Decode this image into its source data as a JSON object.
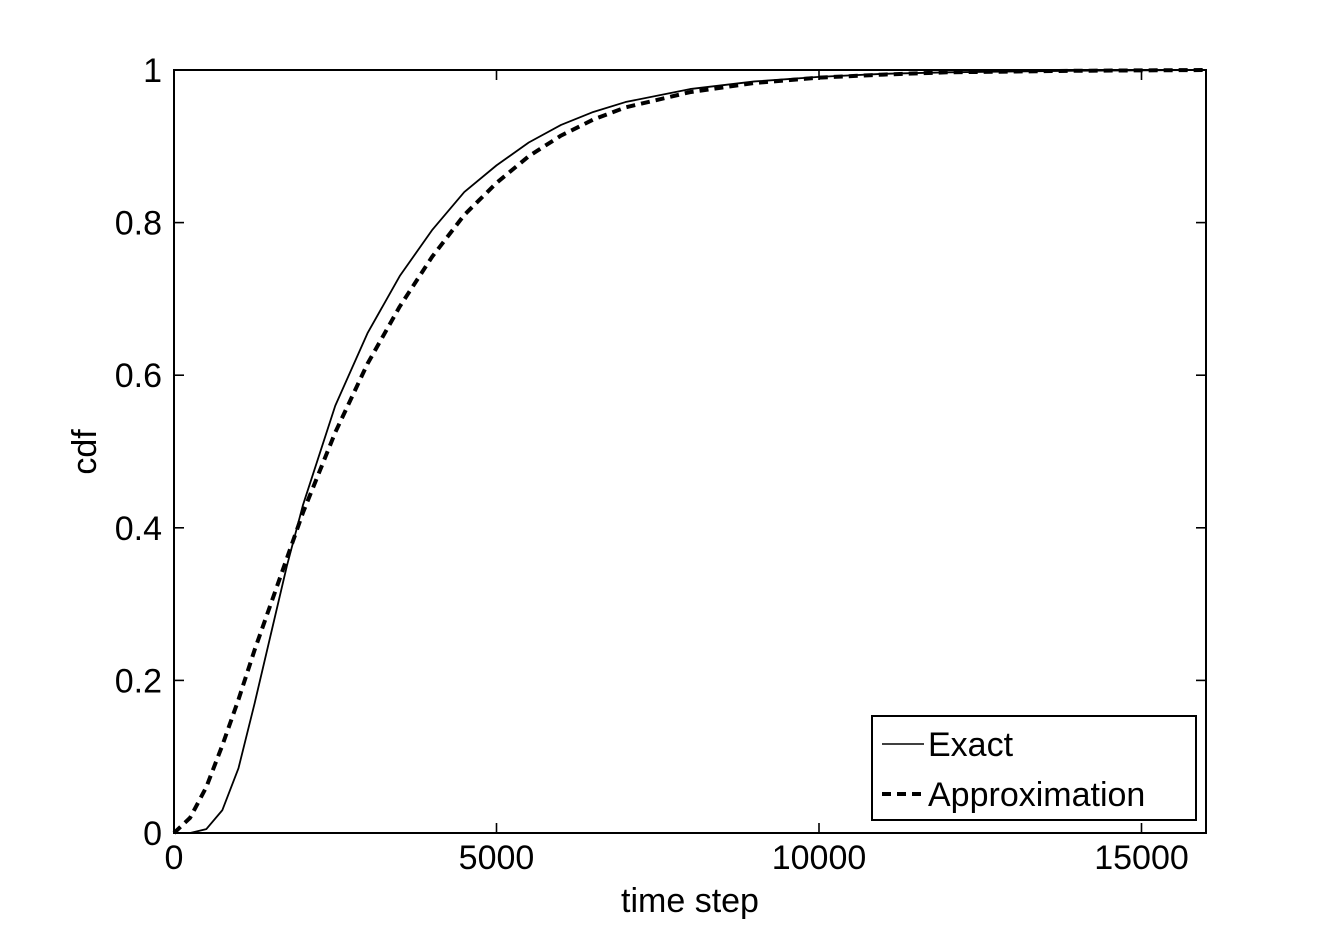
{
  "chart_data": {
    "type": "line",
    "title": "",
    "xlabel": "time step",
    "ylabel": "cdf",
    "xlim": [
      0,
      16000
    ],
    "ylim": [
      0,
      1
    ],
    "xticks": [
      0,
      5000,
      10000,
      15000
    ],
    "xtick_labels": [
      "0",
      "5000",
      "10000",
      "15000"
    ],
    "yticks": [
      0,
      0.2,
      0.4,
      0.6,
      0.8,
      1
    ],
    "ytick_labels": [
      "0",
      "0.2",
      "0.4",
      "0.6",
      "0.8",
      "1"
    ],
    "grid": false,
    "legend_position": "bottom-right",
    "series": [
      {
        "name": "Exact",
        "style": "solid",
        "color": "#000000",
        "x": [
          0,
          250,
          500,
          750,
          1000,
          1250,
          1500,
          1750,
          2000,
          2500,
          3000,
          3500,
          4000,
          4500,
          5000,
          5500,
          6000,
          6500,
          7000,
          8000,
          9000,
          10000,
          11000,
          12000,
          13000,
          14000,
          15000,
          16000
        ],
        "y": [
          0,
          0.0,
          0.005,
          0.03,
          0.085,
          0.17,
          0.26,
          0.35,
          0.43,
          0.56,
          0.655,
          0.73,
          0.79,
          0.84,
          0.875,
          0.905,
          0.928,
          0.945,
          0.958,
          0.975,
          0.985,
          0.991,
          0.995,
          0.997,
          0.998,
          0.999,
          0.9995,
          1.0
        ]
      },
      {
        "name": "Approximation",
        "style": "dashed",
        "color": "#000000",
        "x": [
          0,
          250,
          500,
          750,
          1000,
          1250,
          1500,
          1750,
          2000,
          2500,
          3000,
          3500,
          4000,
          4500,
          5000,
          5500,
          6000,
          6500,
          7000,
          8000,
          9000,
          10000,
          11000,
          12000,
          13000,
          14000,
          15000,
          16000
        ],
        "y": [
          0,
          0.02,
          0.06,
          0.115,
          0.175,
          0.24,
          0.3,
          0.36,
          0.42,
          0.525,
          0.615,
          0.69,
          0.755,
          0.81,
          0.852,
          0.887,
          0.914,
          0.935,
          0.951,
          0.971,
          0.983,
          0.99,
          0.994,
          0.997,
          0.998,
          0.999,
          0.9995,
          1.0
        ]
      }
    ]
  }
}
